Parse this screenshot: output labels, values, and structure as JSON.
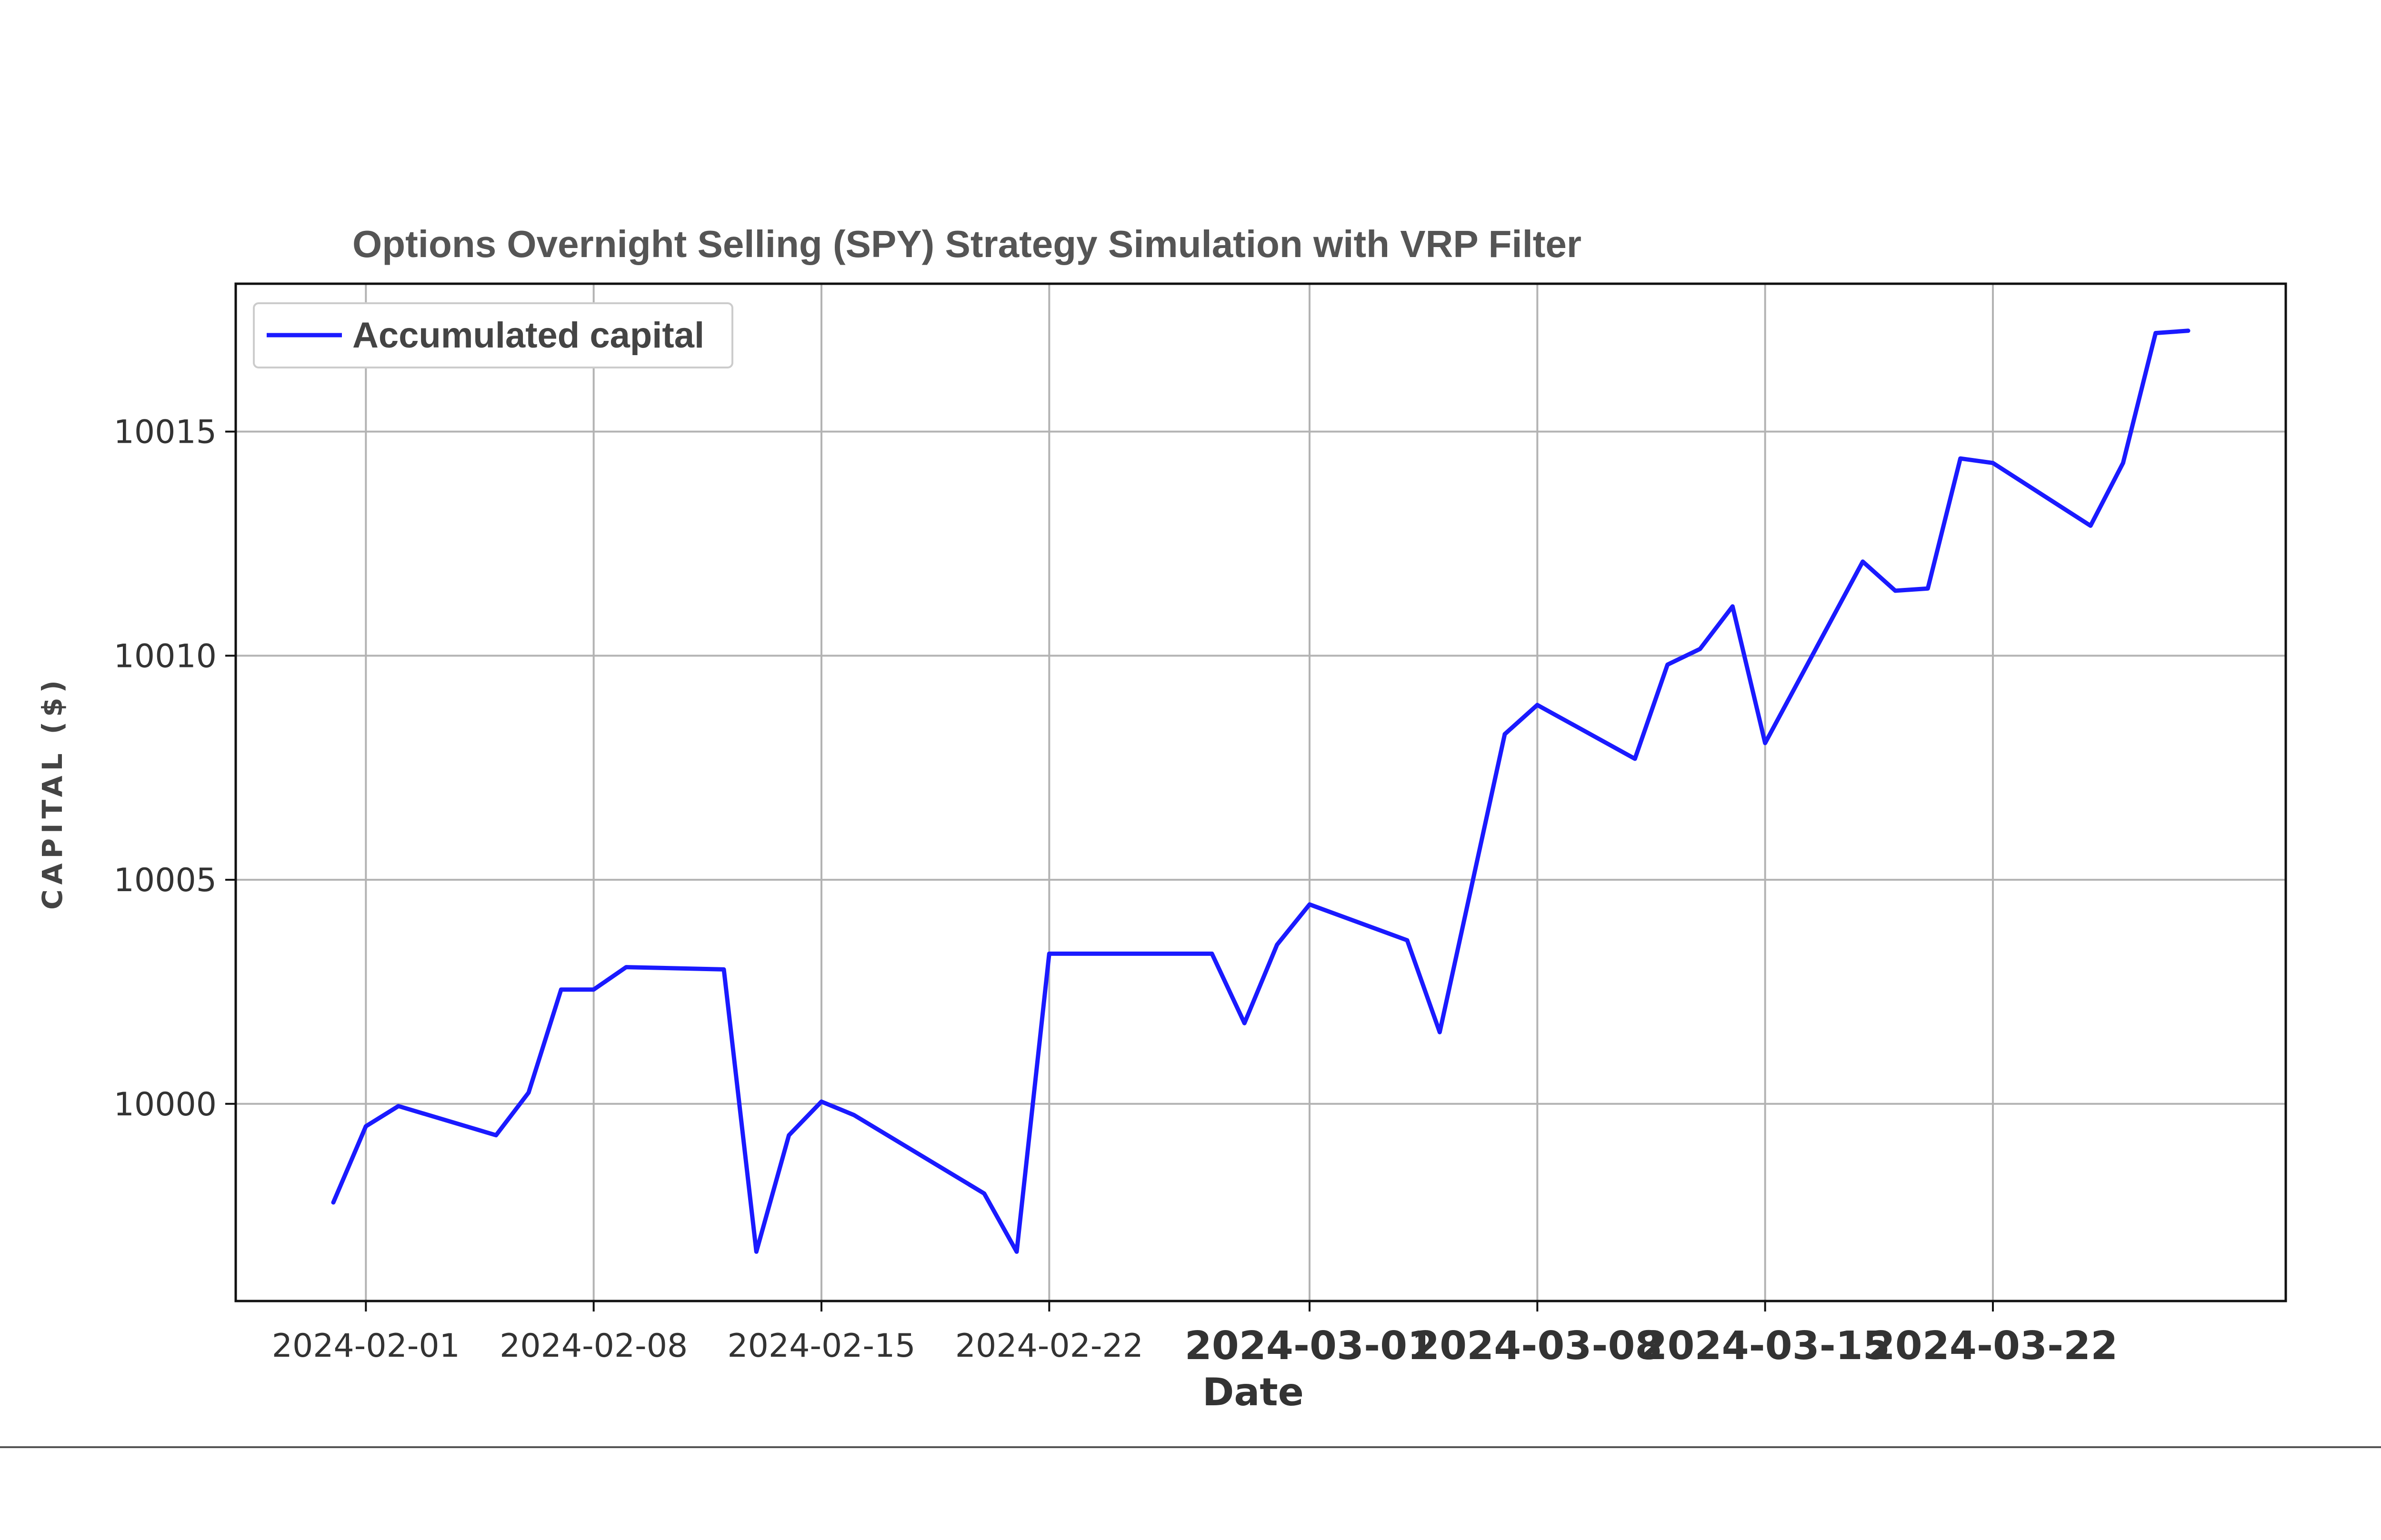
{
  "chart_data": {
    "type": "line",
    "title": "Options Overnight Selling (SPY) Strategy Simulation with VRP Filter",
    "xlabel": "Date",
    "ylabel": "CAPITAL ($)",
    "ylim": [
      9995.6,
      10018.3
    ],
    "xlim": [
      "2024-01-28",
      "2024-03-31"
    ],
    "grid": true,
    "legend_position": "top-left",
    "x_ticks": [
      "2024-02-01",
      "2024-02-08",
      "2024-02-15",
      "2024-02-22",
      "2024-03-01",
      "2024-03-08",
      "2024-03-15",
      "2024-03-22"
    ],
    "y_ticks": [
      10000,
      10005,
      10010,
      10015
    ],
    "series": [
      {
        "name": "Accumulated capital",
        "color": "#1a1aff",
        "x": [
          "2024-01-31",
          "2024-02-01",
          "2024-02-02",
          "2024-02-05",
          "2024-02-06",
          "2024-02-07",
          "2024-02-08",
          "2024-02-09",
          "2024-02-12",
          "2024-02-13",
          "2024-02-14",
          "2024-02-15",
          "2024-02-16",
          "2024-02-20",
          "2024-02-21",
          "2024-02-22",
          "2024-02-27",
          "2024-02-28",
          "2024-02-29",
          "2024-03-01",
          "2024-03-04",
          "2024-03-05",
          "2024-03-07",
          "2024-03-08",
          "2024-03-11",
          "2024-03-12",
          "2024-03-13",
          "2024-03-14",
          "2024-03-15",
          "2024-03-18",
          "2024-03-19",
          "2024-03-20",
          "2024-03-21",
          "2024-03-22",
          "2024-03-25",
          "2024-03-26",
          "2024-03-27",
          "2024-03-28"
        ],
        "values": [
          9997.8,
          9999.5,
          9999.95,
          9999.3,
          10000.25,
          10002.55,
          10002.55,
          10003.05,
          10003.0,
          9996.7,
          9999.3,
          10000.05,
          9999.75,
          9998.0,
          9996.7,
          10003.35,
          10003.35,
          10001.8,
          10003.55,
          10004.45,
          10003.65,
          10001.6,
          10008.25,
          10008.9,
          10007.7,
          10009.8,
          10010.15,
          10011.1,
          10008.05,
          10012.1,
          10011.45,
          10011.5,
          10014.4,
          10014.3,
          10012.9,
          10014.3,
          10017.2,
          10017.25
        ]
      }
    ]
  }
}
